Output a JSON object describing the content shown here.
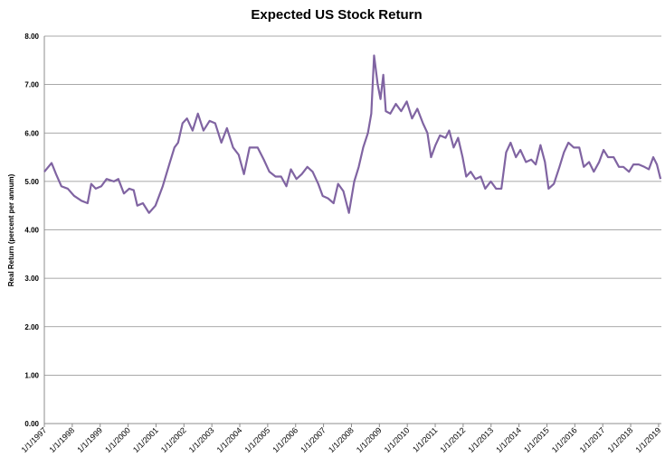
{
  "chart_data": {
    "type": "line",
    "title": "Expected US Stock Return",
    "y_label": "Real Return (percent per annum)",
    "grid": true,
    "color": "#8064a2",
    "xlim": [
      1997,
      2019.1
    ],
    "xticks": [
      {
        "value": 1997,
        "label": "1/1/1997"
      },
      {
        "value": 1998,
        "label": "1/1/1998"
      },
      {
        "value": 1999,
        "label": "1/1/1999"
      },
      {
        "value": 2000,
        "label": "1/1/2000"
      },
      {
        "value": 2001,
        "label": "1/1/2001"
      },
      {
        "value": 2002,
        "label": "1/1/2002"
      },
      {
        "value": 2003,
        "label": "1/1/2003"
      },
      {
        "value": 2004,
        "label": "1/1/2004"
      },
      {
        "value": 2005,
        "label": "1/1/2005"
      },
      {
        "value": 2006,
        "label": "1/1/2006"
      },
      {
        "value": 2007,
        "label": "1/1/2007"
      },
      {
        "value": 2008,
        "label": "1/1/2008"
      },
      {
        "value": 2009,
        "label": "1/1/2009"
      },
      {
        "value": 2010,
        "label": "1/1/2010"
      },
      {
        "value": 2011,
        "label": "1/1/2011"
      },
      {
        "value": 2012,
        "label": "1/1/2012"
      },
      {
        "value": 2013,
        "label": "1/1/2013"
      },
      {
        "value": 2014,
        "label": "1/1/2014"
      },
      {
        "value": 2015,
        "label": "1/1/2015"
      },
      {
        "value": 2016,
        "label": "1/1/2016"
      },
      {
        "value": 2017,
        "label": "1/1/2017"
      },
      {
        "value": 2018,
        "label": "1/1/2018"
      },
      {
        "value": 2019,
        "label": "1/1/2019"
      }
    ],
    "ylim": [
      0,
      8
    ],
    "yticks": [
      {
        "value": 0,
        "label": "0.00"
      },
      {
        "value": 1,
        "label": "1.00"
      },
      {
        "value": 2,
        "label": "2.00"
      },
      {
        "value": 3,
        "label": "3.00"
      },
      {
        "value": 4,
        "label": "4.00"
      },
      {
        "value": 5,
        "label": "5.00"
      },
      {
        "value": 6,
        "label": "6.00"
      },
      {
        "value": 7,
        "label": "7.00"
      },
      {
        "value": 8,
        "label": "8.00"
      }
    ],
    "x": [
      1997.0,
      1997.26,
      1997.42,
      1997.61,
      1997.84,
      1998.07,
      1998.33,
      1998.55,
      1998.68,
      1998.84,
      1999.04,
      1999.23,
      1999.49,
      1999.65,
      1999.85,
      2000.04,
      2000.2,
      2000.33,
      2000.53,
      2000.75,
      2000.98,
      2001.24,
      2001.5,
      2001.66,
      2001.79,
      2001.95,
      2002.11,
      2002.31,
      2002.5,
      2002.7,
      2002.92,
      2003.12,
      2003.34,
      2003.54,
      2003.76,
      2003.96,
      2004.15,
      2004.35,
      2004.64,
      2004.86,
      2005.06,
      2005.28,
      2005.48,
      2005.67,
      2005.83,
      2006.03,
      2006.22,
      2006.42,
      2006.61,
      2006.81,
      2006.97,
      2007.16,
      2007.36,
      2007.52,
      2007.71,
      2007.91,
      2008.1,
      2008.26,
      2008.42,
      2008.59,
      2008.71,
      2008.81,
      2008.94,
      2009.04,
      2009.14,
      2009.23,
      2009.39,
      2009.59,
      2009.78,
      2009.98,
      2010.17,
      2010.36,
      2010.56,
      2010.72,
      2010.85,
      2011.01,
      2011.17,
      2011.37,
      2011.5,
      2011.66,
      2011.82,
      2011.98,
      2012.11,
      2012.27,
      2012.44,
      2012.63,
      2012.79,
      2012.99,
      2013.18,
      2013.37,
      2013.54,
      2013.7,
      2013.89,
      2014.05,
      2014.25,
      2014.44,
      2014.6,
      2014.77,
      2014.93,
      2015.06,
      2015.25,
      2015.45,
      2015.61,
      2015.77,
      2015.96,
      2016.16,
      2016.32,
      2016.51,
      2016.68,
      2016.87,
      2017.03,
      2017.19,
      2017.39,
      2017.58,
      2017.74,
      2017.94,
      2018.1,
      2018.29,
      2018.49,
      2018.65,
      2018.81,
      2018.94,
      2019.07
    ],
    "values": [
      5.2,
      5.38,
      5.15,
      4.9,
      4.85,
      4.7,
      4.6,
      4.55,
      4.95,
      4.85,
      4.9,
      5.05,
      5.0,
      5.05,
      4.75,
      4.85,
      4.82,
      4.5,
      4.55,
      4.35,
      4.5,
      4.9,
      5.4,
      5.7,
      5.8,
      6.2,
      6.3,
      6.05,
      6.4,
      6.05,
      6.25,
      6.2,
      5.8,
      6.1,
      5.7,
      5.55,
      5.15,
      5.7,
      5.7,
      5.45,
      5.2,
      5.1,
      5.1,
      4.9,
      5.25,
      5.05,
      5.15,
      5.3,
      5.2,
      4.95,
      4.7,
      4.65,
      4.55,
      4.95,
      4.8,
      4.35,
      5.0,
      5.3,
      5.7,
      6.0,
      6.4,
      7.6,
      7.0,
      6.7,
      7.2,
      6.45,
      6.4,
      6.6,
      6.45,
      6.65,
      6.3,
      6.5,
      6.2,
      6.0,
      5.5,
      5.75,
      5.95,
      5.9,
      6.05,
      5.7,
      5.9,
      5.5,
      5.1,
      5.2,
      5.05,
      5.1,
      4.85,
      5.0,
      4.85,
      4.85,
      5.6,
      5.8,
      5.5,
      5.65,
      5.4,
      5.45,
      5.35,
      5.75,
      5.4,
      4.85,
      4.95,
      5.3,
      5.6,
      5.8,
      5.7,
      5.7,
      5.3,
      5.4,
      5.2,
      5.4,
      5.65,
      5.5,
      5.5,
      5.3,
      5.3,
      5.2,
      5.35,
      5.35,
      5.3,
      5.25,
      5.5,
      5.35,
      5.05
    ]
  }
}
